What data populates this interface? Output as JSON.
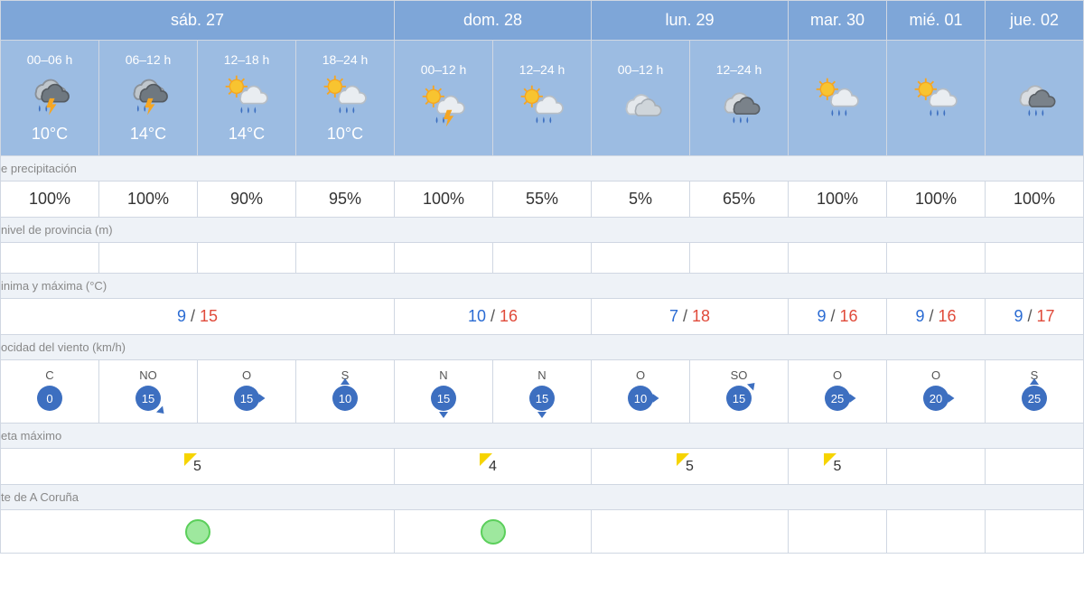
{
  "colors": {
    "header_bg": "#7ea6d8",
    "period_bg": "#9cbce2",
    "section_bg": "#eef2f7",
    "border": "#d0d7e2",
    "tmin": "#2a6bd3",
    "tmax": "#e04a3a",
    "wind_badge": "#3d6fc0",
    "uv_triangle": "#f6d400",
    "sky_fill": "#9ee89e",
    "sky_border": "#5bcf5b"
  },
  "days": [
    {
      "label": "sáb. 27",
      "span": 4,
      "temp": {
        "min": "9",
        "max": "15"
      },
      "uv": "5",
      "sky": true
    },
    {
      "label": "dom. 28",
      "span": 2,
      "temp": {
        "min": "10",
        "max": "16"
      },
      "uv": "4",
      "sky": true
    },
    {
      "label": "lun. 29",
      "span": 2,
      "temp": {
        "min": "7",
        "max": "18"
      },
      "uv": "5",
      "sky": false
    },
    {
      "label": "mar. 30",
      "span": 1,
      "temp": {
        "min": "9",
        "max": "16"
      },
      "uv": "5",
      "sky": false
    },
    {
      "label": "mié. 01",
      "span": 1,
      "temp": {
        "min": "9",
        "max": "16"
      },
      "uv": "",
      "sky": false
    },
    {
      "label": "jue. 02",
      "span": 1,
      "temp": {
        "min": "9",
        "max": "17"
      },
      "uv": "",
      "sky": false
    }
  ],
  "periods": [
    {
      "label": "00–06 h",
      "icon": "storm",
      "temp": "10°C",
      "precip": "100%",
      "wind": {
        "dir": "C",
        "speed": "0",
        "arrow": "none"
      }
    },
    {
      "label": "06–12 h",
      "icon": "storm",
      "temp": "14°C",
      "precip": "100%",
      "wind": {
        "dir": "NO",
        "speed": "15",
        "arrow": "se"
      }
    },
    {
      "label": "12–18 h",
      "icon": "sun-rain",
      "temp": "14°C",
      "precip": "90%",
      "wind": {
        "dir": "O",
        "speed": "15",
        "arrow": "e"
      }
    },
    {
      "label": "18–24 h",
      "icon": "sun-rain",
      "temp": "10°C",
      "precip": "95%",
      "wind": {
        "dir": "S",
        "speed": "10",
        "arrow": "n"
      }
    },
    {
      "label": "00–12 h",
      "icon": "sun-storm",
      "temp": "",
      "precip": "100%",
      "wind": {
        "dir": "N",
        "speed": "15",
        "arrow": "s"
      }
    },
    {
      "label": "12–24 h",
      "icon": "sun-rain",
      "temp": "",
      "precip": "55%",
      "wind": {
        "dir": "N",
        "speed": "15",
        "arrow": "s"
      }
    },
    {
      "label": "00–12 h",
      "icon": "cloudy",
      "temp": "",
      "precip": "5%",
      "wind": {
        "dir": "O",
        "speed": "10",
        "arrow": "e"
      }
    },
    {
      "label": "12–24 h",
      "icon": "dark-rain",
      "temp": "",
      "precip": "65%",
      "wind": {
        "dir": "SO",
        "speed": "15",
        "arrow": "ne"
      }
    },
    {
      "label": "",
      "icon": "sun-rain",
      "temp": "",
      "precip": "100%",
      "wind": {
        "dir": "O",
        "speed": "25",
        "arrow": "e"
      }
    },
    {
      "label": "",
      "icon": "sun-rain",
      "temp": "",
      "precip": "100%",
      "wind": {
        "dir": "O",
        "speed": "20",
        "arrow": "e"
      }
    },
    {
      "label": "",
      "icon": "dark-rain",
      "temp": "",
      "precip": "100%",
      "wind": {
        "dir": "S",
        "speed": "25",
        "arrow": "n"
      }
    }
  ],
  "sections": {
    "precip": "e precipitación",
    "snow": "nivel de provincia (m)",
    "temp": "inima y máxima (°C)",
    "wind": "ocidad del viento (km/h)",
    "uv": "eta máximo",
    "sky": "te de A Coruña"
  }
}
